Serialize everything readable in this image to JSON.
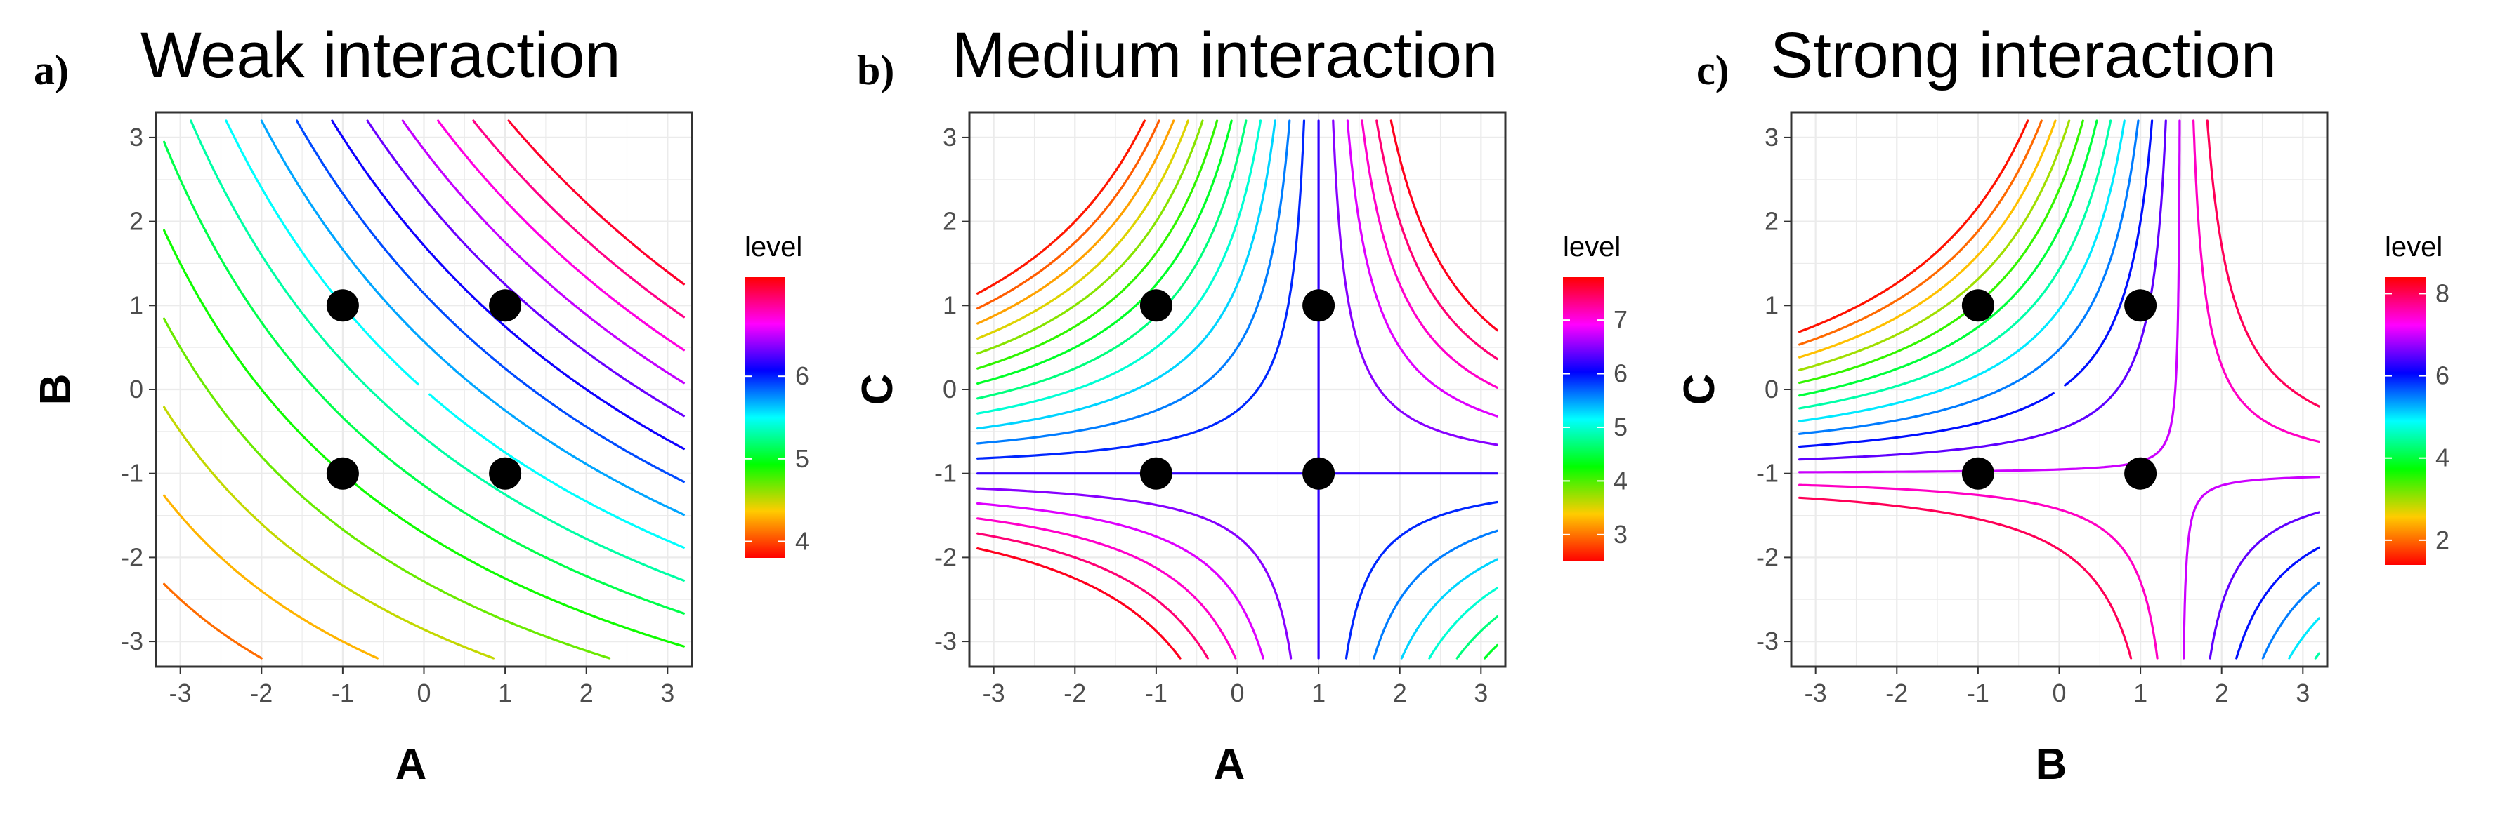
{
  "chart_data": [
    {
      "type": "contour",
      "panel_letter": "a)",
      "title": "Weak interaction",
      "xlabel": "A",
      "ylabel": "B",
      "xlim": [
        -3.3,
        3.3
      ],
      "ylim": [
        -3.3,
        3.3
      ],
      "x_ticks": [
        -3,
        -2,
        -1,
        0,
        1,
        2,
        3
      ],
      "y_ticks": [
        -3,
        -2,
        -1,
        0,
        1,
        2,
        3
      ],
      "grid": true,
      "legend_position": "right",
      "legend_title": "level",
      "legend_range": [
        3.8,
        7.2
      ],
      "legend_ticks": [
        4,
        5,
        6
      ],
      "points": [
        {
          "x": -1,
          "y": 1
        },
        {
          "x": 1,
          "y": 1
        },
        {
          "x": -1,
          "y": -1
        },
        {
          "x": 1,
          "y": -1
        }
      ],
      "surface": {
        "b0": 5.5,
        "bx": 0.3,
        "by": 0.35,
        "bxy": 0.05,
        "bxx": 0.0,
        "byy": 0.0
      },
      "contour_levels": [
        3.9,
        4.1,
        4.3,
        4.5,
        4.7,
        4.9,
        5.1,
        5.3,
        5.5,
        5.7,
        5.9,
        6.1,
        6.3,
        6.5,
        6.7,
        6.9,
        7.1
      ]
    },
    {
      "type": "contour",
      "panel_letter": "b)",
      "title": "Medium interaction",
      "xlabel": "A",
      "ylabel": "C",
      "xlim": [
        -3.3,
        3.3
      ],
      "ylim": [
        -3.3,
        3.3
      ],
      "x_ticks": [
        -3,
        -2,
        -1,
        0,
        1,
        2,
        3
      ],
      "y_ticks": [
        -3,
        -2,
        -1,
        0,
        1,
        2,
        3
      ],
      "grid": true,
      "legend_position": "right",
      "legend_title": "level",
      "legend_range": [
        2.5,
        7.8
      ],
      "legend_ticks": [
        3,
        4,
        5,
        6,
        7
      ],
      "points": [
        {
          "x": -1,
          "y": 1
        },
        {
          "x": 1,
          "y": 1
        },
        {
          "x": -1,
          "y": -1
        },
        {
          "x": 1,
          "y": -1
        }
      ],
      "surface": {
        "b0": 5.8,
        "bx": 0.4,
        "by": -0.4,
        "bxy": 0.4,
        "bxx": 0.0,
        "byy": 0.0
      },
      "contour_levels": [
        2.6,
        2.9,
        3.2,
        3.5,
        3.8,
        4.1,
        4.4,
        4.7,
        5.0,
        5.3,
        5.6,
        5.9,
        6.2,
        6.5,
        6.8,
        7.1,
        7.4,
        7.7
      ]
    },
    {
      "type": "contour",
      "panel_letter": "c)",
      "title": "Strong interaction",
      "xlabel": "B",
      "ylabel": "C",
      "xlim": [
        -3.3,
        3.3
      ],
      "ylim": [
        -3.3,
        3.3
      ],
      "x_ticks": [
        -3,
        -2,
        -1,
        0,
        1,
        2,
        3
      ],
      "y_ticks": [
        -3,
        -2,
        -1,
        0,
        1,
        2,
        3
      ],
      "grid": true,
      "legend_position": "right",
      "legend_title": "level",
      "legend_range": [
        1.4,
        8.4
      ],
      "legend_ticks": [
        2,
        4,
        6,
        8
      ],
      "points": [
        {
          "x": -1,
          "y": 1
        },
        {
          "x": 1,
          "y": 1
        },
        {
          "x": -1,
          "y": -1
        },
        {
          "x": 1,
          "y": -1
        }
      ],
      "surface": {
        "b0": 6.0,
        "bx": 0.7,
        "by": -1.05,
        "bxy": 0.7,
        "bxx": 0.0,
        "byy": 0.0
      },
      "contour_levels": [
        1.5,
        2.0,
        2.5,
        3.0,
        3.5,
        4.0,
        4.5,
        5.0,
        5.5,
        6.0,
        6.5,
        7.0,
        7.5,
        8.0
      ]
    }
  ]
}
